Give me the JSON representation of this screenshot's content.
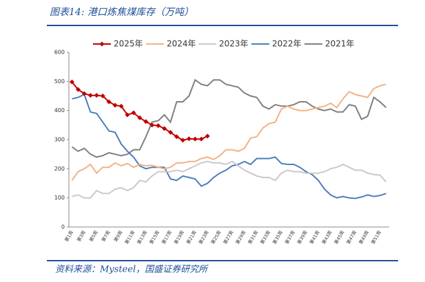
{
  "header": {
    "title": "图表14:  港口炼焦煤库存（万吨）"
  },
  "footer": {
    "source": "资料来源：Mysteel，国盛证券研究所"
  },
  "chart_data": {
    "type": "line",
    "categories": [
      "第1周",
      null,
      "第3周",
      null,
      "第5周",
      null,
      "第7周",
      null,
      "第9周",
      null,
      "第11周",
      null,
      "第13周",
      null,
      "第15周",
      null,
      "第17周",
      null,
      "第19周",
      null,
      "第21周",
      null,
      "第23周",
      null,
      "第25周",
      null,
      "第27周",
      null,
      "第29周",
      null,
      "第31周",
      null,
      "第33周",
      null,
      "第35周",
      null,
      "第37周",
      null,
      "第39周",
      null,
      "第41周",
      null,
      "第43周",
      null,
      "第45周",
      null,
      "第47周",
      null,
      "第49周",
      null,
      "第51周",
      null
    ],
    "ylim": [
      0,
      600
    ],
    "yticks": [
      0,
      100,
      200,
      300,
      400,
      500,
      600
    ],
    "legend": "top",
    "series": [
      {
        "name": "2025年",
        "color": "#c00000",
        "marker": true,
        "values": [
          498,
          472,
          458,
          452,
          452,
          450,
          430,
          418,
          415,
          385,
          392,
          375,
          362,
          350,
          348,
          338,
          325,
          310,
          298,
          303,
          302,
          302,
          312,
          null,
          null,
          null,
          null,
          null,
          null,
          null,
          null,
          null,
          null,
          null,
          null,
          null,
          null,
          null,
          null,
          null,
          null,
          null,
          null,
          null,
          null,
          null,
          null,
          null,
          null,
          null,
          null,
          null
        ]
      },
      {
        "name": "2024年",
        "color": "#f4b183",
        "values": [
          160,
          190,
          200,
          215,
          185,
          205,
          205,
          220,
          210,
          218,
          205,
          215,
          210,
          212,
          205,
          200,
          205,
          220,
          220,
          225,
          225,
          235,
          240,
          232,
          245,
          265,
          265,
          260,
          270,
          305,
          310,
          340,
          355,
          360,
          405,
          415,
          405,
          400,
          400,
          405,
          410,
          415,
          425,
          410,
          440,
          465,
          455,
          450,
          445,
          475,
          485,
          490
        ]
      },
      {
        "name": "2023年",
        "color": "#c9c9c9",
        "values": [
          105,
          110,
          100,
          100,
          125,
          115,
          115,
          130,
          135,
          125,
          135,
          160,
          155,
          175,
          190,
          190,
          190,
          195,
          190,
          200,
          210,
          220,
          225,
          220,
          220,
          215,
          225,
          210,
          195,
          185,
          175,
          170,
          170,
          160,
          185,
          195,
          190,
          190,
          185,
          185,
          185,
          190,
          200,
          205,
          215,
          205,
          195,
          195,
          185,
          180,
          178,
          155
        ]
      },
      {
        "name": "2022年",
        "color": "#4a7ebb",
        "values": [
          440,
          445,
          455,
          395,
          390,
          360,
          330,
          325,
          285,
          260,
          240,
          210,
          200,
          205,
          205,
          205,
          165,
          160,
          175,
          170,
          165,
          140,
          150,
          170,
          185,
          195,
          210,
          215,
          225,
          215,
          235,
          235,
          235,
          240,
          218,
          215,
          215,
          205,
          190,
          180,
          160,
          130,
          110,
          100,
          105,
          100,
          98,
          103,
          110,
          105,
          108,
          115
        ]
      },
      {
        "name": "2021年",
        "color": "#7f7f7f",
        "values": [
          275,
          260,
          270,
          250,
          240,
          245,
          255,
          250,
          245,
          250,
          265,
          265,
          310,
          360,
          365,
          385,
          360,
          430,
          430,
          450,
          505,
          490,
          485,
          505,
          505,
          490,
          485,
          480,
          460,
          450,
          445,
          415,
          405,
          420,
          415,
          415,
          420,
          430,
          430,
          415,
          405,
          400,
          405,
          395,
          395,
          420,
          415,
          370,
          380,
          445,
          430,
          410
        ]
      }
    ]
  }
}
